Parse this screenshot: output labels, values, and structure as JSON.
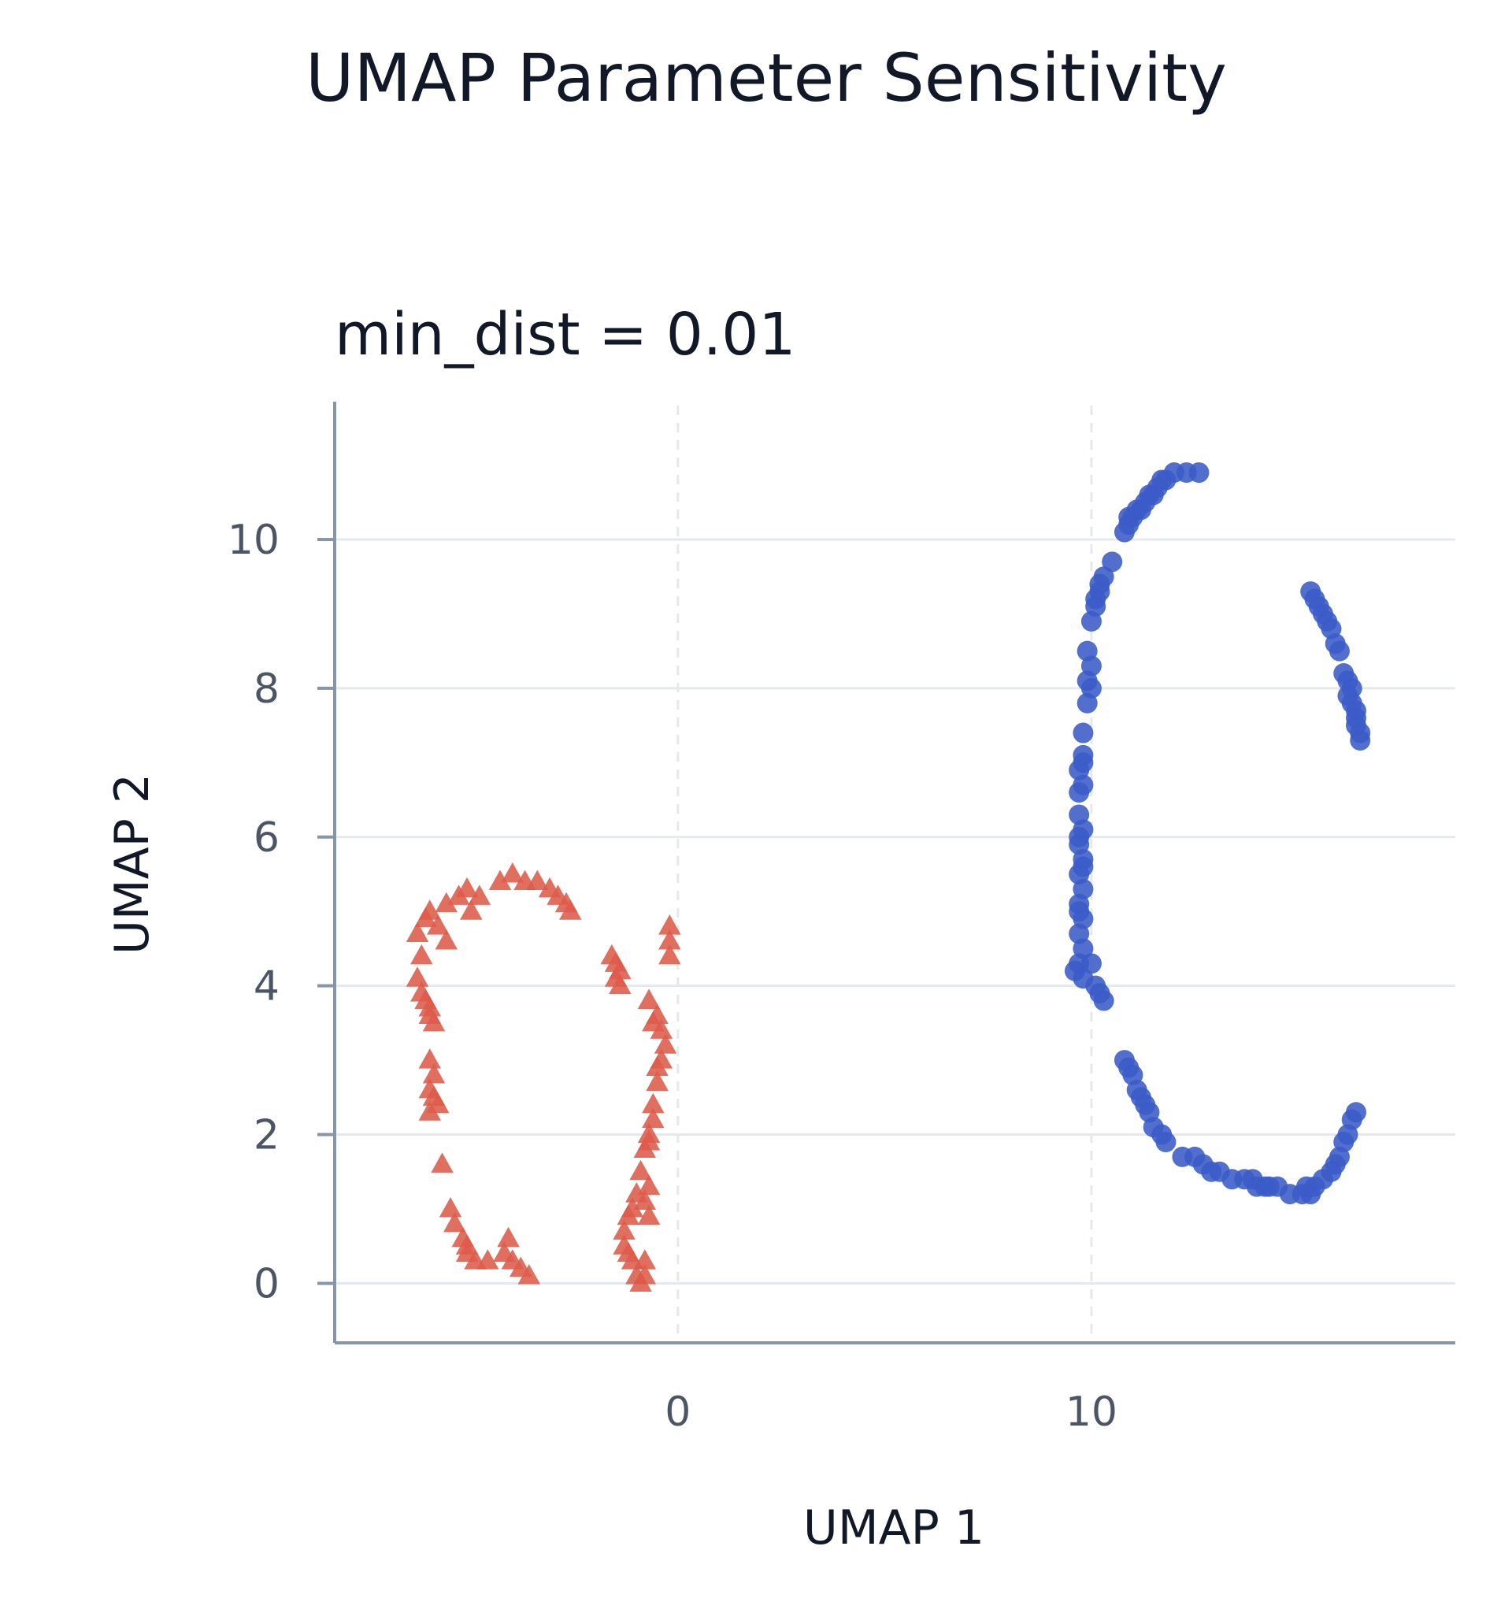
{
  "chart_data": {
    "type": "scatter",
    "title": "UMAP Parameter Sensitivity",
    "subtitle": "min_dist = 0.01",
    "xlabel": "UMAP 1",
    "ylabel": "UMAP 2",
    "xlim": [
      -8.3,
      18.8
    ],
    "ylim": [
      -0.8,
      11.8
    ],
    "xticks": [
      0,
      10
    ],
    "yticks": [
      0,
      2,
      4,
      6,
      8,
      10
    ],
    "grid": {
      "x": "dashed-at-ticks",
      "y": "solid-at-ticks"
    },
    "legend": "none",
    "series": [
      {
        "marker": "triangle",
        "color": "#dd5b4a",
        "points": [
          [
            -6.3,
            4.7
          ],
          [
            -6.1,
            4.9
          ],
          [
            -6.0,
            5.0
          ],
          [
            -5.8,
            4.8
          ],
          [
            -5.6,
            5.1
          ],
          [
            -5.3,
            5.2
          ],
          [
            -5.1,
            5.3
          ],
          [
            -5.0,
            5.0
          ],
          [
            -4.8,
            5.2
          ],
          [
            -4.3,
            5.4
          ],
          [
            -4.0,
            5.5
          ],
          [
            -3.7,
            5.4
          ],
          [
            -3.4,
            5.4
          ],
          [
            -3.1,
            5.3
          ],
          [
            -2.9,
            5.2
          ],
          [
            -2.7,
            5.1
          ],
          [
            -2.6,
            5.0
          ],
          [
            -5.6,
            4.6
          ],
          [
            -6.2,
            4.4
          ],
          [
            -6.3,
            4.1
          ],
          [
            -6.2,
            3.9
          ],
          [
            -6.1,
            3.8
          ],
          [
            -6.0,
            3.6
          ],
          [
            -5.9,
            3.5
          ],
          [
            -6.0,
            3.7
          ],
          [
            -6.0,
            3.0
          ],
          [
            -5.9,
            2.8
          ],
          [
            -6.0,
            2.6
          ],
          [
            -5.8,
            2.4
          ],
          [
            -5.9,
            2.5
          ],
          [
            -6.0,
            2.3
          ],
          [
            -5.7,
            1.6
          ],
          [
            -5.5,
            1.0
          ],
          [
            -5.4,
            0.8
          ],
          [
            -5.2,
            0.6
          ],
          [
            -5.1,
            0.4
          ],
          [
            -4.9,
            0.3
          ],
          [
            -4.6,
            0.3
          ],
          [
            -4.2,
            0.4
          ],
          [
            -4.0,
            0.3
          ],
          [
            -3.8,
            0.2
          ],
          [
            -3.6,
            0.1
          ],
          [
            -4.1,
            0.6
          ],
          [
            -5.1,
            0.5
          ],
          [
            -1.6,
            4.4
          ],
          [
            -1.5,
            4.3
          ],
          [
            -1.4,
            4.2
          ],
          [
            -1.4,
            4.0
          ],
          [
            -1.5,
            4.1
          ],
          [
            -0.2,
            4.8
          ],
          [
            -0.2,
            4.6
          ],
          [
            -0.2,
            4.4
          ],
          [
            -0.7,
            3.8
          ],
          [
            -0.5,
            3.6
          ],
          [
            -0.4,
            3.4
          ],
          [
            -0.3,
            3.2
          ],
          [
            -0.4,
            3.0
          ],
          [
            -0.5,
            2.7
          ],
          [
            -0.6,
            2.4
          ],
          [
            -0.6,
            2.2
          ],
          [
            -0.7,
            2.0
          ],
          [
            -0.8,
            1.8
          ],
          [
            -0.9,
            1.5
          ],
          [
            -0.7,
            1.3
          ],
          [
            -0.8,
            1.1
          ],
          [
            -1.0,
            1.2
          ],
          [
            -1.2,
            0.9
          ],
          [
            -1.3,
            0.7
          ],
          [
            -1.3,
            0.5
          ],
          [
            -1.1,
            0.3
          ],
          [
            -1.0,
            0.1
          ],
          [
            -0.8,
            0.1
          ],
          [
            -0.8,
            0.3
          ],
          [
            -0.6,
            3.5
          ],
          [
            -0.5,
            2.9
          ],
          [
            -0.7,
            1.9
          ],
          [
            -1.1,
            1.0
          ],
          [
            -0.7,
            0.9
          ],
          [
            -1.2,
            0.4
          ],
          [
            -0.9,
            0.0
          ]
        ]
      },
      {
        "marker": "circle",
        "color": "#3a5bc7",
        "points": [
          [
            12.6,
            10.9
          ],
          [
            12.3,
            10.9
          ],
          [
            12.0,
            10.9
          ],
          [
            11.8,
            10.8
          ],
          [
            11.6,
            10.7
          ],
          [
            11.5,
            10.6
          ],
          [
            11.3,
            10.5
          ],
          [
            11.2,
            10.4
          ],
          [
            11.0,
            10.3
          ],
          [
            10.9,
            10.2
          ],
          [
            10.8,
            10.1
          ],
          [
            10.9,
            10.3
          ],
          [
            11.1,
            10.4
          ],
          [
            11.4,
            10.6
          ],
          [
            11.7,
            10.8
          ],
          [
            10.5,
            9.7
          ],
          [
            10.3,
            9.5
          ],
          [
            10.2,
            9.3
          ],
          [
            10.1,
            9.1
          ],
          [
            10.0,
            8.9
          ],
          [
            10.2,
            9.4
          ],
          [
            10.1,
            9.2
          ],
          [
            9.9,
            8.5
          ],
          [
            10.0,
            8.3
          ],
          [
            9.9,
            8.1
          ],
          [
            10.0,
            8.0
          ],
          [
            9.9,
            7.8
          ],
          [
            9.8,
            7.4
          ],
          [
            9.8,
            7.1
          ],
          [
            9.7,
            6.9
          ],
          [
            9.8,
            6.7
          ],
          [
            9.7,
            6.6
          ],
          [
            9.8,
            7.0
          ],
          [
            9.7,
            6.3
          ],
          [
            9.8,
            6.1
          ],
          [
            9.7,
            5.9
          ],
          [
            9.8,
            5.7
          ],
          [
            9.7,
            5.5
          ],
          [
            9.8,
            5.3
          ],
          [
            9.7,
            5.1
          ],
          [
            9.8,
            4.9
          ],
          [
            9.7,
            4.7
          ],
          [
            9.8,
            4.5
          ],
          [
            9.7,
            4.3
          ],
          [
            9.6,
            4.2
          ],
          [
            9.8,
            4.1
          ],
          [
            10.0,
            4.3
          ],
          [
            10.1,
            4.0
          ],
          [
            10.2,
            3.9
          ],
          [
            10.3,
            3.8
          ],
          [
            9.7,
            5.0
          ],
          [
            9.8,
            5.6
          ],
          [
            9.7,
            6.0
          ],
          [
            10.8,
            3.0
          ],
          [
            10.9,
            2.9
          ],
          [
            11.0,
            2.8
          ],
          [
            11.1,
            2.6
          ],
          [
            11.3,
            2.4
          ],
          [
            11.4,
            2.3
          ],
          [
            11.5,
            2.1
          ],
          [
            11.7,
            2.0
          ],
          [
            11.8,
            1.9
          ],
          [
            12.2,
            1.7
          ],
          [
            12.7,
            1.6
          ],
          [
            12.9,
            1.5
          ],
          [
            13.1,
            1.5
          ],
          [
            13.4,
            1.4
          ],
          [
            13.7,
            1.4
          ],
          [
            14.0,
            1.3
          ],
          [
            14.2,
            1.3
          ],
          [
            14.5,
            1.3
          ],
          [
            14.8,
            1.2
          ],
          [
            15.1,
            1.2
          ],
          [
            15.3,
            1.2
          ],
          [
            15.4,
            1.3
          ],
          [
            15.6,
            1.4
          ],
          [
            15.8,
            1.5
          ],
          [
            15.9,
            1.6
          ],
          [
            16.0,
            1.7
          ],
          [
            16.1,
            1.9
          ],
          [
            16.2,
            2.0
          ],
          [
            16.3,
            2.2
          ],
          [
            16.4,
            2.3
          ],
          [
            12.5,
            1.7
          ],
          [
            14.3,
            1.3
          ],
          [
            15.2,
            1.3
          ],
          [
            11.2,
            2.5
          ],
          [
            13.9,
            1.4
          ],
          [
            15.3,
            9.3
          ],
          [
            15.5,
            9.1
          ],
          [
            15.6,
            9.0
          ],
          [
            15.7,
            8.9
          ],
          [
            15.8,
            8.8
          ],
          [
            15.9,
            8.6
          ],
          [
            16.0,
            8.5
          ],
          [
            16.1,
            8.2
          ],
          [
            16.2,
            8.1
          ],
          [
            16.3,
            8.0
          ],
          [
            16.3,
            7.8
          ],
          [
            16.4,
            7.7
          ],
          [
            16.4,
            7.5
          ],
          [
            16.5,
            7.4
          ],
          [
            16.5,
            7.3
          ],
          [
            15.4,
            9.2
          ],
          [
            16.2,
            7.9
          ],
          [
            16.4,
            7.6
          ]
        ]
      }
    ]
  }
}
